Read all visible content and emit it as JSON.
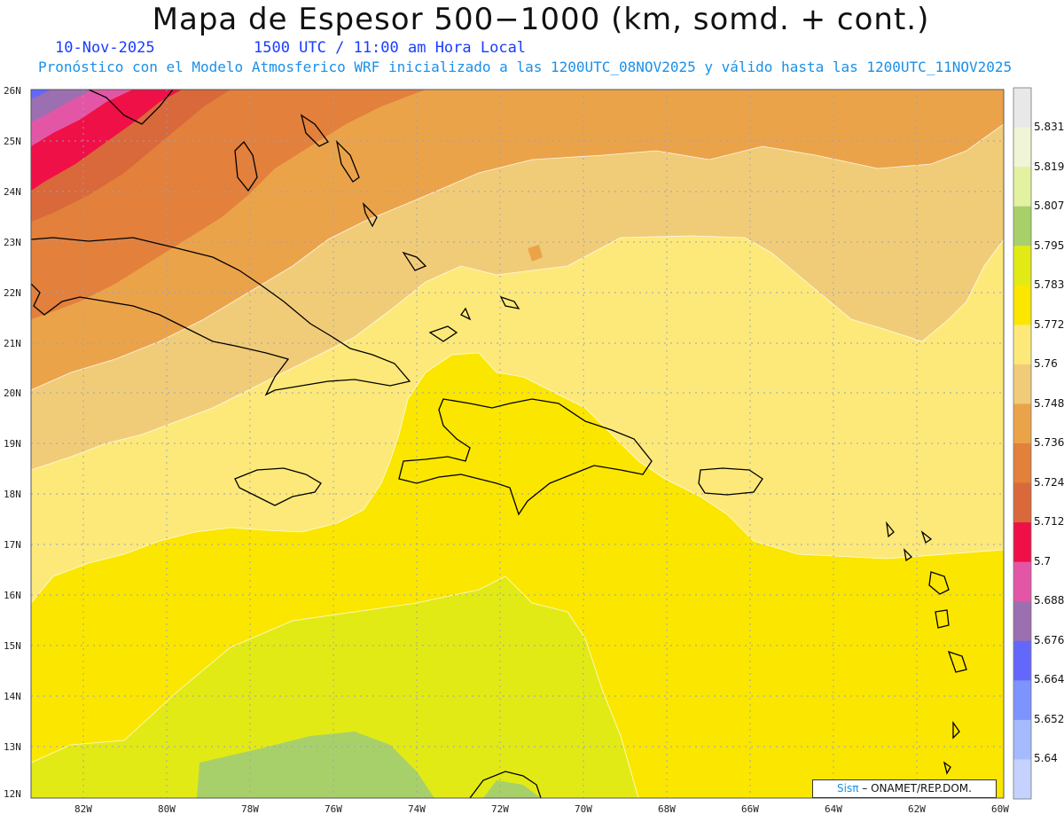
{
  "header": {
    "title": "Mapa de Espesor 500−1000 (km, somd. + cont.)",
    "date": "10-Nov-2025",
    "time": "1500 UTC / 11:00 am Hora Local",
    "subtitle": "Pronóstico con el Modelo Atmosferico WRF inicializado a las 1200UTC_08NOV2025 y válido hasta las  1200UTC_11NOV2025"
  },
  "map": {
    "lat_labels": [
      "26N",
      "25N",
      "24N",
      "23N",
      "22N",
      "21N",
      "20N",
      "19N",
      "18N",
      "17N",
      "16N",
      "15N",
      "14N",
      "13N",
      "12N"
    ],
    "lon_labels": [
      "82W",
      "80W",
      "78W",
      "76W",
      "74W",
      "72W",
      "70W",
      "68W",
      "66W",
      "64W",
      "62W",
      "60W"
    ],
    "lat_range": [
      12,
      26
    ],
    "lon_range": [
      -83.2,
      -60
    ]
  },
  "colorbar": {
    "labels": [
      "5.831",
      "5.819",
      "5.807",
      "5.795",
      "5.783",
      "5.772",
      "5.76",
      "5.748",
      "5.736",
      "5.724",
      "5.712",
      "5.7",
      "5.688",
      "5.676",
      "5.664",
      "5.652",
      "5.64"
    ],
    "colors": [
      "#e8e8e8",
      "#eff5d6",
      "#e2f2a0",
      "#a8d06a",
      "#e2ea16",
      "#fbe600",
      "#fde97a",
      "#f1cc78",
      "#eba34a",
      "#e2803c",
      "#d9683a",
      "#ef1047",
      "#e356a6",
      "#9c6fb0",
      "#6467fb",
      "#7d93fe",
      "#a5bbfe",
      "#c6d2fe"
    ]
  },
  "credit": {
    "logo": "Sisπ",
    "text": "– ONAMET/REP.DOM."
  }
}
